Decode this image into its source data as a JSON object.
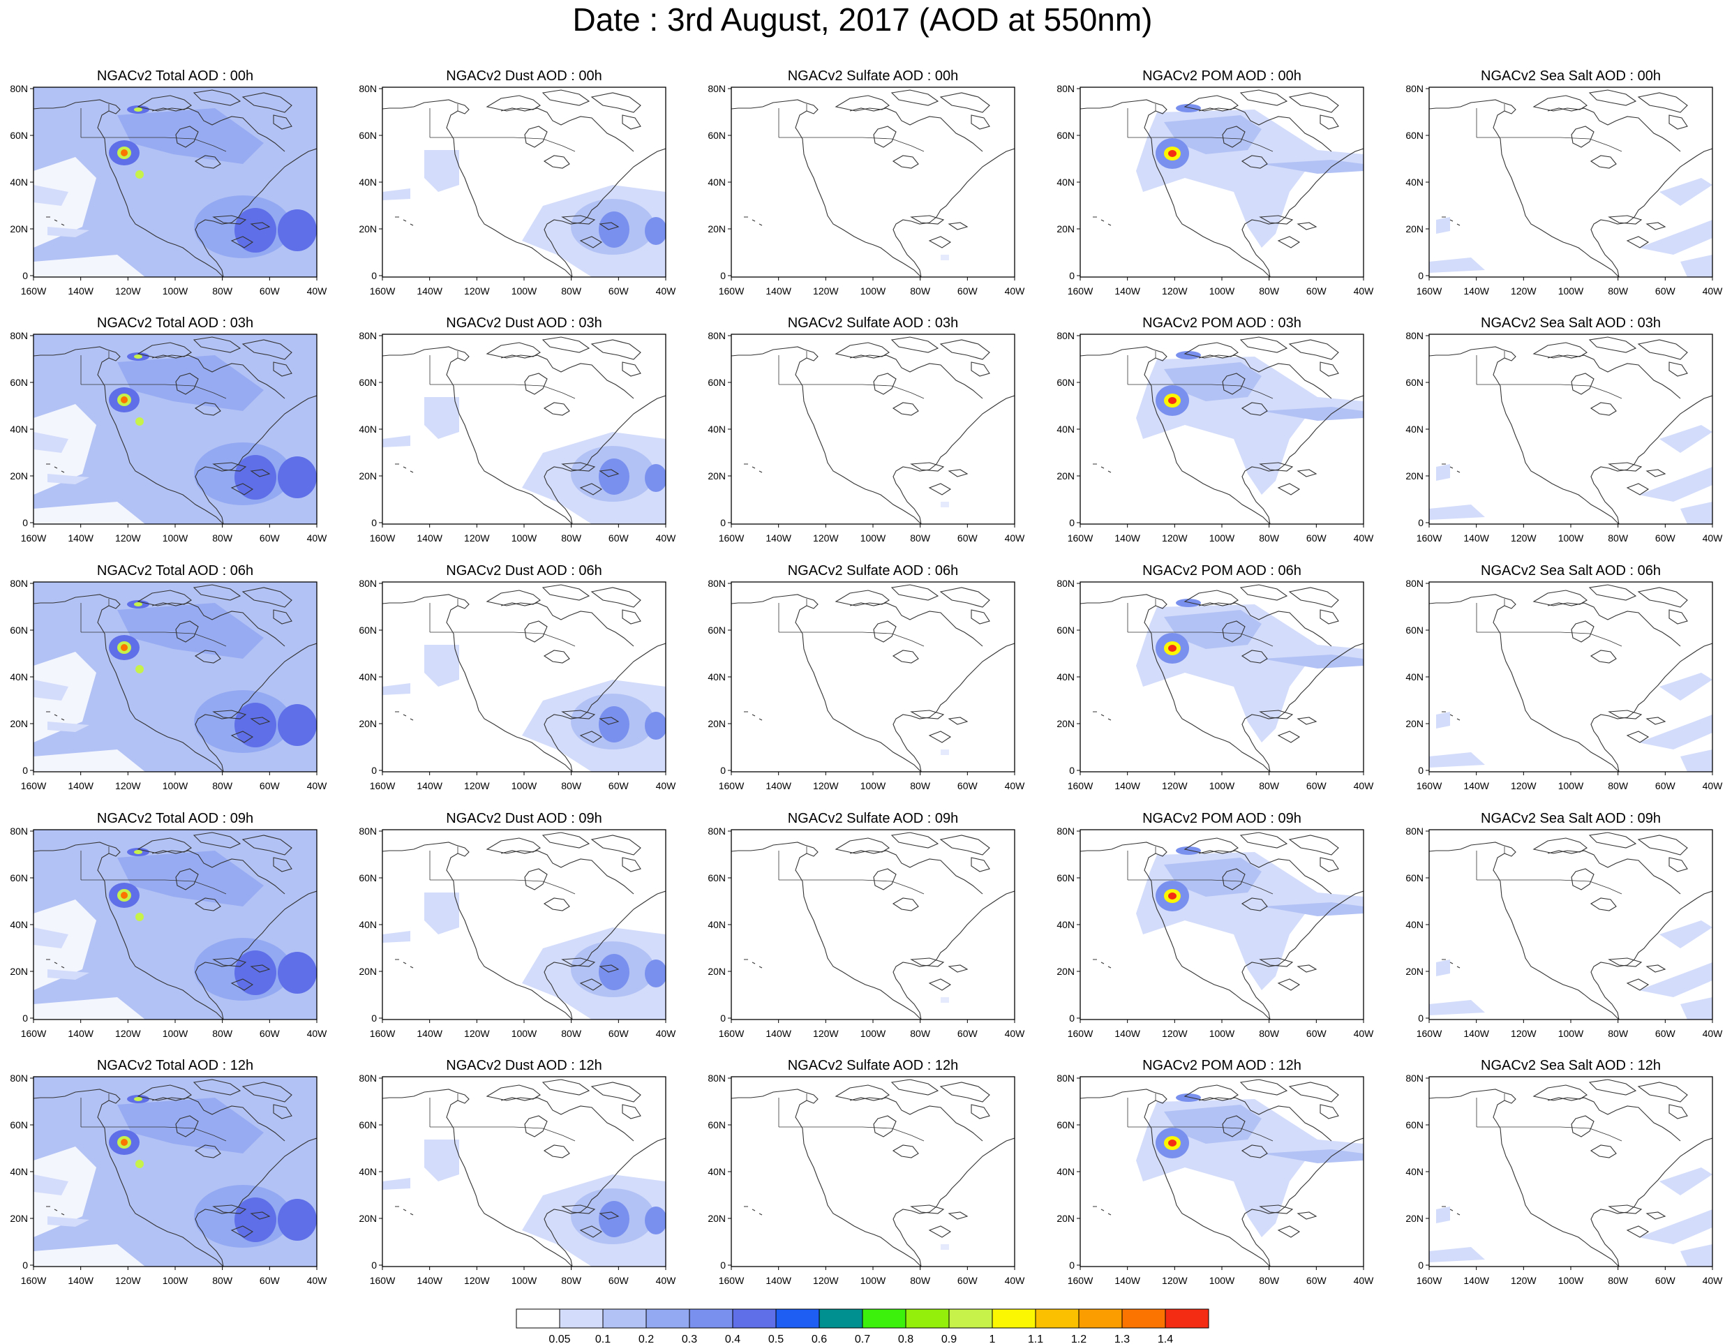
{
  "title": "Date : 3rd August, 2017 (AOD at 550nm)",
  "x_ticks": [
    "160W",
    "140W",
    "120W",
    "100W",
    "80W",
    "60W",
    "40W"
  ],
  "y_ticks": [
    "80N",
    "60N",
    "40N",
    "20N",
    "0"
  ],
  "panels": [
    [
      "NGACv2 Total AOD : 00h",
      "NGACv2 Dust AOD : 00h",
      "NGACv2 Sulfate AOD : 00h",
      "NGACv2 POM AOD : 00h",
      "NGACv2 Sea Salt AOD : 00h"
    ],
    [
      "NGACv2 Total AOD : 03h",
      "NGACv2 Dust AOD : 03h",
      "NGACv2 Sulfate AOD : 03h",
      "NGACv2 POM AOD : 03h",
      "NGACv2 Sea Salt AOD : 03h"
    ],
    [
      "NGACv2 Total AOD : 06h",
      "NGACv2 Dust AOD : 06h",
      "NGACv2 Sulfate AOD : 06h",
      "NGACv2 POM AOD : 06h",
      "NGACv2 Sea Salt AOD : 06h"
    ],
    [
      "NGACv2 Total AOD : 09h",
      "NGACv2 Dust AOD : 09h",
      "NGACv2 Sulfate AOD : 09h",
      "NGACv2 POM AOD : 09h",
      "NGACv2 Sea Salt  AOD : 09h"
    ],
    [
      "NGACv2 Total AOD  : 12h",
      "NGACv2 Dust AOD : 12h",
      "NGACv2 Sulfate AOD : 12h",
      "NGACv2 POM  AOD : 12h",
      "NGACv2 Sea Salt  AOD : 12h"
    ]
  ],
  "colorbar": {
    "colors": [
      "#ffffff",
      "#d3dcfa",
      "#b3c2f5",
      "#93a9f2",
      "#7a90ee",
      "#5e6fe8",
      "#1f5ef2",
      "#00908f",
      "#3cf20c",
      "#94f00a",
      "#c7f24a",
      "#fbf703",
      "#fbc000",
      "#fb9d00",
      "#fb7300",
      "#f52c14"
    ],
    "labels": [
      "0.05",
      "0.1",
      "0.2",
      "0.3",
      "0.4",
      "0.5",
      "0.6",
      "0.7",
      "0.8",
      "0.9",
      "1",
      "1.1",
      "1.2",
      "1.3",
      "1.4"
    ]
  },
  "species_colors": {
    "total": [
      "#d3dcfa",
      "#b3c2f5",
      "#93a9f2",
      "#5e6fe8",
      "#c7f24a",
      "#fb7300"
    ],
    "dust": [
      "#d3dcfa",
      "#b3c2f5",
      "#7a90ee",
      "#5e6fe8"
    ],
    "sulfate": [
      "#d3dcfa"
    ],
    "pom": [
      "#d3dcfa",
      "#b3c2f5",
      "#7a90ee",
      "#fbf703",
      "#f52c14"
    ],
    "seasalt": [
      "#d3dcfa"
    ]
  }
}
